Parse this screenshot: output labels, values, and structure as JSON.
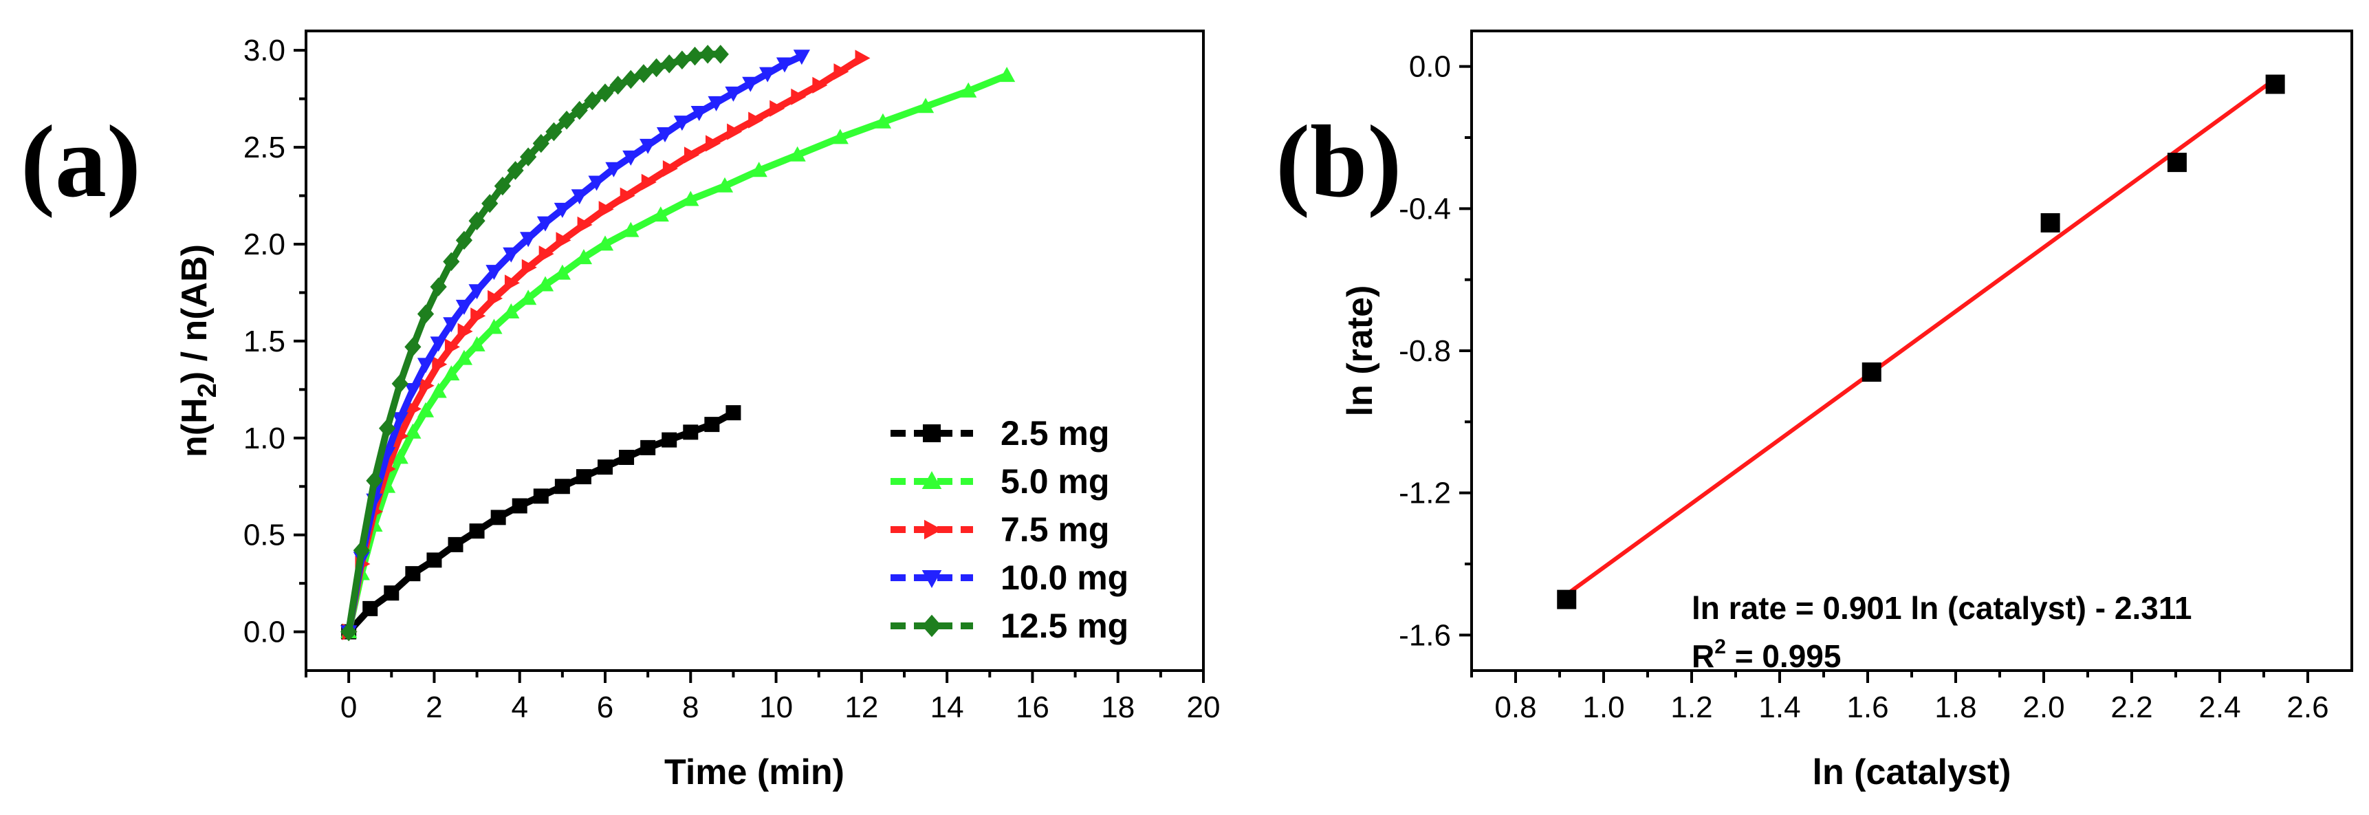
{
  "chart_data": [
    {
      "panel": "(a)",
      "type": "line",
      "title": "",
      "xlabel": "Time (min)",
      "ylabel_pre": "n(H",
      "ylabel_sub": "2",
      "ylabel_post": ") / n(AB)",
      "xlim": [
        -1,
        20
      ],
      "ylim": [
        -0.2,
        3.1
      ],
      "xticks": [
        0,
        2,
        4,
        6,
        8,
        10,
        12,
        14,
        16,
        18,
        20
      ],
      "xticklabels": [
        "0",
        "2",
        "4",
        "6",
        "8",
        "10",
        "12",
        "14",
        "16",
        "18",
        "20"
      ],
      "yticks": [
        0.0,
        0.5,
        1.0,
        1.5,
        2.0,
        2.5,
        3.0
      ],
      "yticklabels": [
        "0.0",
        "0.5",
        "1.0",
        "1.5",
        "2.0",
        "2.5",
        "3.0"
      ],
      "legend_position": "bottom-right",
      "series": [
        {
          "name": "2.5   mg",
          "color": "#000000",
          "marker": "square",
          "x": [
            0,
            0.5,
            1,
            1.5,
            2,
            2.5,
            3,
            3.5,
            4,
            4.5,
            5,
            5.5,
            6,
            6.5,
            7,
            7.5,
            8,
            8.5,
            9
          ],
          "y": [
            0,
            0.12,
            0.2,
            0.3,
            0.37,
            0.45,
            0.52,
            0.59,
            0.65,
            0.7,
            0.75,
            0.8,
            0.85,
            0.9,
            0.95,
            0.99,
            1.03,
            1.07,
            1.13
          ]
        },
        {
          "name": "5.0   mg",
          "color": "#33ff33",
          "marker": "triangle-up",
          "x": [
            0,
            0.3,
            0.6,
            0.9,
            1.2,
            1.5,
            1.8,
            2.1,
            2.4,
            2.7,
            3,
            3.4,
            3.8,
            4.2,
            4.6,
            5,
            5.5,
            6,
            6.6,
            7.3,
            8,
            8.8,
            9.6,
            10.5,
            11.5,
            12.5,
            13.5,
            14.5,
            15.4
          ],
          "y": [
            0,
            0.3,
            0.55,
            0.75,
            0.9,
            1.03,
            1.14,
            1.24,
            1.33,
            1.41,
            1.48,
            1.57,
            1.65,
            1.72,
            1.79,
            1.85,
            1.93,
            2.0,
            2.07,
            2.15,
            2.23,
            2.3,
            2.38,
            2.46,
            2.55,
            2.63,
            2.71,
            2.79,
            2.87
          ]
        },
        {
          "name": "7.5   mg",
          "color": "#ff2222",
          "marker": "triangle-right",
          "x": [
            0,
            0.3,
            0.6,
            0.9,
            1.2,
            1.5,
            1.8,
            2.1,
            2.4,
            2.7,
            3,
            3.4,
            3.8,
            4.2,
            4.6,
            5,
            5.5,
            6,
            6.5,
            7,
            7.5,
            8,
            8.5,
            9,
            9.5,
            10,
            10.5,
            11,
            11.5,
            12
          ],
          "y": [
            0,
            0.35,
            0.62,
            0.84,
            1.01,
            1.15,
            1.27,
            1.38,
            1.47,
            1.55,
            1.63,
            1.72,
            1.8,
            1.88,
            1.95,
            2.02,
            2.1,
            2.18,
            2.25,
            2.32,
            2.39,
            2.46,
            2.52,
            2.58,
            2.64,
            2.7,
            2.76,
            2.82,
            2.89,
            2.96
          ]
        },
        {
          "name": "10.0 mg",
          "color": "#2222ff",
          "marker": "triangle-down",
          "x": [
            0,
            0.3,
            0.6,
            0.9,
            1.2,
            1.5,
            1.8,
            2.1,
            2.4,
            2.7,
            3,
            3.4,
            3.8,
            4.2,
            4.6,
            5,
            5.4,
            5.8,
            6.2,
            6.6,
            7,
            7.4,
            7.8,
            8.2,
            8.6,
            9,
            9.4,
            9.8,
            10.2,
            10.6
          ],
          "y": [
            0,
            0.38,
            0.68,
            0.92,
            1.1,
            1.25,
            1.38,
            1.49,
            1.59,
            1.68,
            1.76,
            1.86,
            1.95,
            2.03,
            2.11,
            2.18,
            2.25,
            2.32,
            2.39,
            2.45,
            2.51,
            2.57,
            2.63,
            2.68,
            2.73,
            2.78,
            2.83,
            2.88,
            2.93,
            2.97
          ]
        },
        {
          "name": "12.5 mg",
          "color": "#1e7f1e",
          "marker": "diamond",
          "x": [
            0,
            0.3,
            0.6,
            0.9,
            1.2,
            1.5,
            1.8,
            2.1,
            2.4,
            2.7,
            3,
            3.3,
            3.6,
            3.9,
            4.2,
            4.5,
            4.8,
            5.1,
            5.4,
            5.7,
            6,
            6.3,
            6.6,
            6.9,
            7.2,
            7.5,
            7.8,
            8.1,
            8.4,
            8.7
          ],
          "y": [
            0,
            0.42,
            0.78,
            1.05,
            1.28,
            1.47,
            1.64,
            1.78,
            1.91,
            2.02,
            2.12,
            2.21,
            2.3,
            2.38,
            2.45,
            2.52,
            2.58,
            2.64,
            2.69,
            2.74,
            2.78,
            2.82,
            2.85,
            2.88,
            2.91,
            2.93,
            2.95,
            2.97,
            2.98,
            2.98
          ]
        }
      ]
    },
    {
      "panel": "(b)",
      "type": "scatter",
      "title": "",
      "xlabel": "ln (catalyst)",
      "ylabel": "ln (rate)",
      "xlim": [
        0.7,
        2.7
      ],
      "ylim": [
        -1.7,
        0.1
      ],
      "xticks": [
        0.8,
        1.0,
        1.2,
        1.4,
        1.6,
        1.8,
        2.0,
        2.2,
        2.4,
        2.6
      ],
      "xticklabels": [
        "0.8",
        "1.0",
        "1.2",
        "1.4",
        "1.6",
        "1.8",
        "2.0",
        "2.2",
        "2.4",
        "2.6"
      ],
      "yticks": [
        0.0,
        -0.4,
        -0.8,
        -1.2,
        -1.6
      ],
      "yticklabels": [
        "0.0",
        "-0.4",
        "-0.8",
        "-1.2",
        "-1.6"
      ],
      "points": {
        "x": [
          0.916,
          1.609,
          2.015,
          2.303,
          2.526
        ],
        "y": [
          -1.5,
          -0.86,
          -0.44,
          -0.27,
          -0.05
        ]
      },
      "point_color": "#000000",
      "fit": {
        "slope": 0.901,
        "intercept": -2.311,
        "x_range": [
          0.916,
          2.526
        ],
        "color": "#ff1a1a"
      },
      "annotation_equation": "ln rate = 0.901 ln (catalyst) - 2.311",
      "annotation_r2_pre": "R",
      "annotation_r2_sup": "2",
      "annotation_r2_post": " = 0.995"
    }
  ]
}
